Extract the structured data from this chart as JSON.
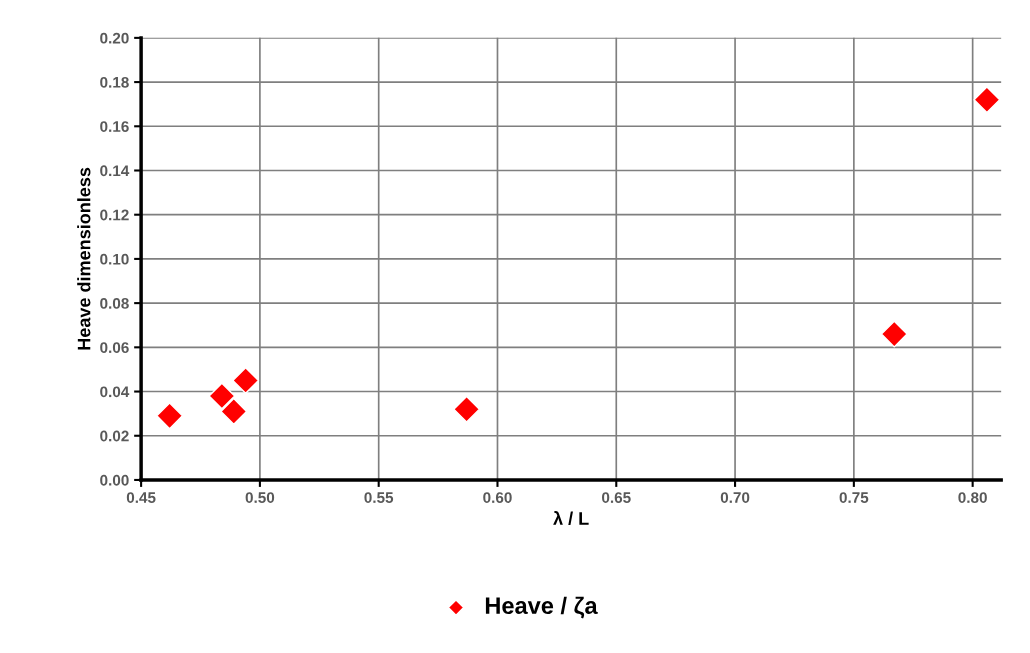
{
  "chart_data": {
    "type": "scatter",
    "xlabel": "λ / L",
    "ylabel": "Heave dimensionless",
    "xlim": [
      0.45,
      0.812
    ],
    "xticks": [
      0.45,
      {
        "value": 0.5,
        "label": "0.50"
      },
      0.55,
      {
        "value": 0.6,
        "label": "0.60"
      },
      0.65,
      {
        "value": 0.7,
        "label": "0.70"
      },
      0.75,
      {
        "value": 0.8,
        "label": "0.80"
      }
    ],
    "ylim": [
      0,
      0.2
    ],
    "yticks": [
      {
        "value": 0,
        "label": "0.00"
      },
      0.02,
      0.04,
      0.06,
      0.08,
      {
        "value": 0.1,
        "label": "0.10"
      },
      0.12,
      0.14,
      0.16,
      0.18,
      {
        "value": 0.2,
        "label": "0.20"
      }
    ],
    "grid": true,
    "legend": "bottom",
    "marker": "diamond",
    "series": [
      {
        "name": "Heave / ζa",
        "color": "#ff0000",
        "x": [
          0.462,
          0.484,
          0.489,
          0.494,
          0.587,
          0.767,
          0.806
        ],
        "values": [
          0.029,
          0.038,
          0.031,
          0.045,
          0.032,
          0.066,
          0.172
        ]
      }
    ]
  }
}
